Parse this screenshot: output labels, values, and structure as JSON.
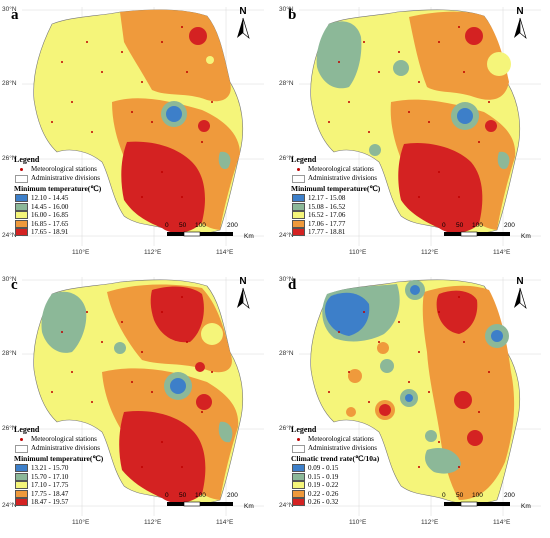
{
  "north_label": "N",
  "latitudes": [
    "30°N",
    "28°N",
    "26°N",
    "24°N"
  ],
  "longitudes": [
    "110°E",
    "112°E",
    "114°E"
  ],
  "scale": {
    "ticks": [
      "0",
      "50",
      "100",
      "200"
    ],
    "unit": "Km"
  },
  "legend_common": {
    "title": "Legend",
    "stations": "Meteorological stations",
    "divisions": "Administrative divisions"
  },
  "colors": {
    "class1": "#3d7fc9",
    "class2": "#8cb898",
    "class3": "#f5f57a",
    "class4": "#ef9a3c",
    "class5": "#d42222",
    "station": "#c00000"
  },
  "panels": [
    {
      "label": "a",
      "legend_title": "Minimum temperature(℃)",
      "classes": [
        "12.10 - 14.45",
        "14.45 - 16.00",
        "16.00 - 16.85",
        "16.85 - 17.65",
        "17.65 - 18.91"
      ]
    },
    {
      "label": "b",
      "legend_title": "Minimuml temperature(℃)",
      "classes": [
        "12.17 - 15.08",
        "15.08 - 16.52",
        "16.52 - 17.06",
        "17.06 - 17.77",
        "17.77 - 18.81"
      ]
    },
    {
      "label": "c",
      "legend_title": "Minimuml temperature(℃)",
      "classes": [
        "13.21 - 15.70",
        "15.70 - 17.10",
        "17.10 - 17.75",
        "17.75 - 18.47",
        "18.47 - 19.57"
      ]
    },
    {
      "label": "d",
      "legend_title": "Climatic trend rate(℃/10a)",
      "classes": [
        "0.09 - 0.15",
        "0.15 - 0.19",
        "0.19 - 0.22",
        "0.22 - 0.26",
        "0.26 - 0.32"
      ]
    }
  ]
}
